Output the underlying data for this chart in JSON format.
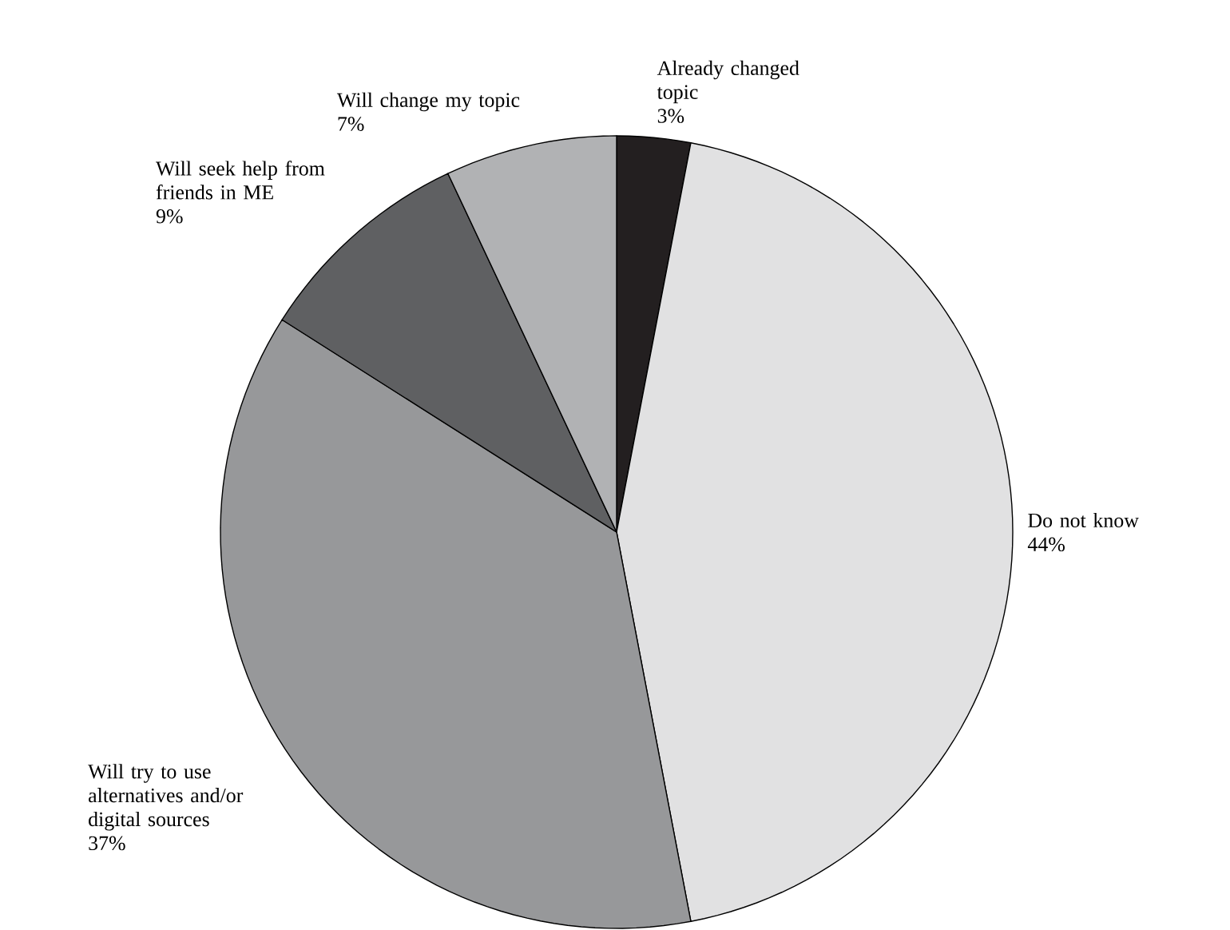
{
  "chart_data": {
    "type": "pie",
    "categories": [
      "Already changed topic",
      "Do not know",
      "Will try to use alternatives and/or digital sources",
      "Will seek help from friends in ME",
      "Will change my topic"
    ],
    "values": [
      3,
      44,
      37,
      9,
      7
    ],
    "value_labels": [
      "3%",
      "44%",
      "37%",
      "9%",
      "7%"
    ],
    "colors": [
      "#231f20",
      "#e1e1e2",
      "#97989a",
      "#5f6062",
      "#b1b2b4"
    ]
  }
}
